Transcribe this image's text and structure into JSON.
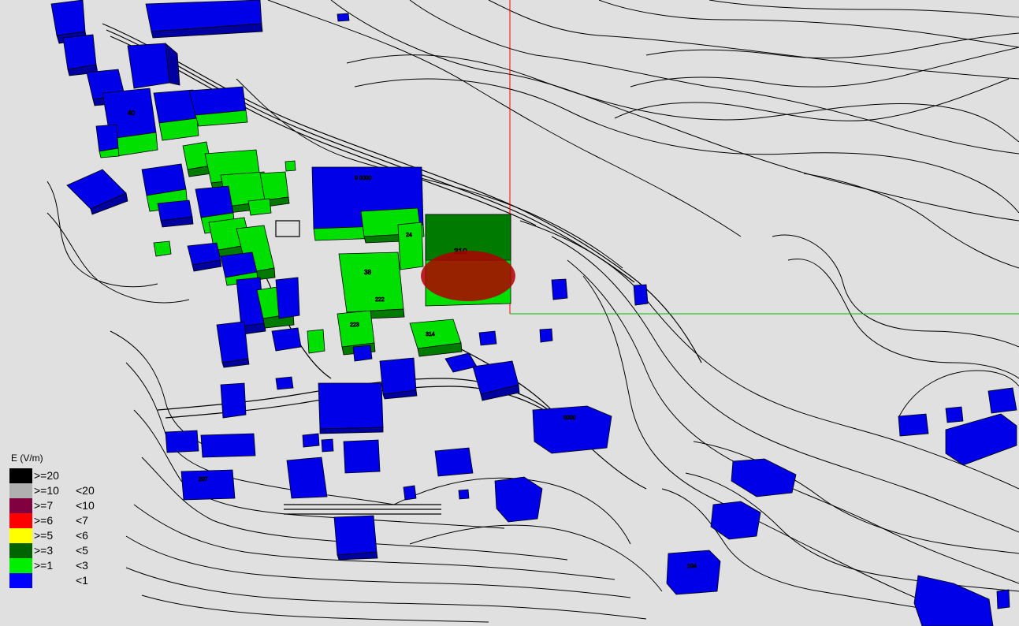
{
  "legend": {
    "title": "E (V/m)",
    "classes": [
      {
        "lower": ">=20",
        "upper": "",
        "color": "#000000"
      },
      {
        "lower": ">=10",
        "upper": "<20",
        "color": "#b0b0b0"
      },
      {
        "lower": ">=7",
        "upper": "<10",
        "color": "#800040"
      },
      {
        "lower": ">=6",
        "upper": "<7",
        "color": "#ff0000"
      },
      {
        "lower": ">=5",
        "upper": "<6",
        "color": "#ffff00"
      },
      {
        "lower": ">=3",
        "upper": "<5",
        "color": "#006400"
      },
      {
        "lower": ">=1",
        "upper": "<3",
        "color": "#00ee00"
      },
      {
        "lower": "",
        "upper": "<1",
        "color": "#0000ff"
      }
    ]
  },
  "colors": {
    "background": "#e0e0e0",
    "contour": "#000000",
    "crosshair_vertical": "#ff0000",
    "crosshair_horizontal": "#00c000",
    "field_hotspot": "#b00000",
    "building_low": "#0000e8",
    "building_mid": "#00e000",
    "building_high": "#007a00"
  }
}
